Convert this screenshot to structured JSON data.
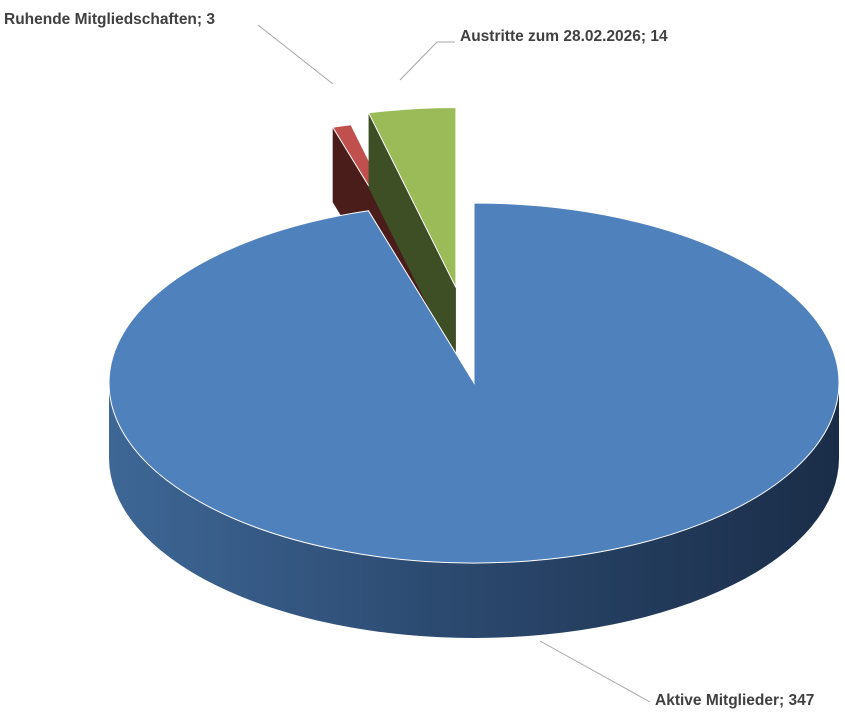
{
  "chart_data": {
    "type": "pie",
    "style": "3d-exploded",
    "slices": [
      {
        "label": "Aktive Mitglieder",
        "value": 347,
        "display": "Aktive Mitglieder; 347",
        "color": "#4f81bd"
      },
      {
        "label": "Ruhende Mitgliedschaften",
        "value": 3,
        "display": "Ruhende Mitgliedschaften; 3",
        "color": "#c0504d"
      },
      {
        "label": "Austritte zum 28.02.2026",
        "value": 14,
        "display": "Austritte zum 28.02.2026; 14",
        "color": "#9bbb59"
      }
    ],
    "legend": "none",
    "data_labels": "outside with leader lines"
  }
}
